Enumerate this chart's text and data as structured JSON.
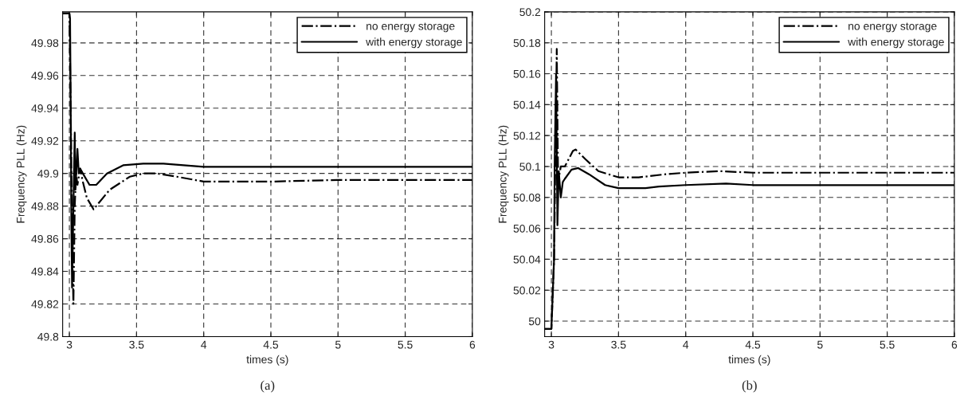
{
  "chart_data": [
    {
      "type": "line",
      "xlabel": "times (s)",
      "ylabel": "Frequency PLL (Hz)",
      "annotations": [
        "(a)"
      ],
      "xlim": [
        2.95,
        6
      ],
      "xticks": [
        3,
        3.5,
        4,
        4.5,
        5,
        5.5,
        6
      ],
      "ylim": [
        49.8,
        49.999
      ],
      "yticks": [
        49.8,
        49.82,
        49.84,
        49.86,
        49.88,
        49.9,
        49.92,
        49.94,
        49.96,
        49.98
      ],
      "grid": true,
      "legend": "top right",
      "series": [
        {
          "name": "no energy storage",
          "color": "#000000",
          "line_style": "dashdot",
          "x": [
            2.95,
            3.0,
            3.01,
            3.02,
            3.03,
            3.04,
            3.05,
            3.06,
            3.08,
            3.1,
            3.13,
            3.18,
            3.22,
            3.3,
            3.45,
            3.55,
            3.65,
            3.8,
            4.0,
            4.5,
            5.0,
            6.0
          ],
          "values": [
            49.998,
            49.998,
            49.94,
            49.86,
            49.82,
            49.88,
            49.9,
            49.893,
            49.903,
            49.895,
            49.885,
            49.878,
            49.882,
            49.89,
            49.898,
            49.9,
            49.9,
            49.898,
            49.895,
            49.895,
            49.896,
            49.896
          ]
        },
        {
          "name": "with energy storage",
          "color": "#000000",
          "line_style": "solid",
          "x": [
            2.95,
            3.0,
            3.005,
            3.01,
            3.015,
            3.02,
            3.03,
            3.04,
            3.045,
            3.06,
            3.07,
            3.08,
            3.1,
            3.15,
            3.2,
            3.28,
            3.4,
            3.55,
            3.7,
            3.85,
            4.0,
            6.0
          ],
          "values": [
            49.998,
            49.998,
            49.995,
            49.94,
            49.87,
            49.83,
            49.88,
            49.925,
            49.89,
            49.915,
            49.9,
            49.903,
            49.9,
            49.893,
            49.893,
            49.9,
            49.905,
            49.906,
            49.906,
            49.905,
            49.904,
            49.904
          ]
        }
      ]
    },
    {
      "type": "line",
      "xlabel": "times (s)",
      "ylabel": "Frequency PLL (Hz)",
      "annotations": [
        "(b)"
      ],
      "xlim": [
        2.95,
        6
      ],
      "xticks": [
        3,
        3.5,
        4,
        4.5,
        5,
        5.5,
        6
      ],
      "ylim": [
        49.99,
        50.2
      ],
      "yticks": [
        50,
        50.02,
        50.04,
        50.06,
        50.08,
        50.1,
        50.12,
        50.14,
        50.16,
        50.18,
        50.2
      ],
      "grid": true,
      "legend": "top right",
      "series": [
        {
          "name": "no energy storage",
          "color": "#000000",
          "line_style": "dashdot",
          "x": [
            2.95,
            3.0,
            3.02,
            3.04,
            3.05,
            3.07,
            3.1,
            3.16,
            3.18,
            3.25,
            3.35,
            3.5,
            3.65,
            3.85,
            4.0,
            4.25,
            4.5,
            5.0,
            6.0
          ],
          "values": [
            49.995,
            49.995,
            50.04,
            50.176,
            50.09,
            50.1,
            50.1,
            50.11,
            50.111,
            50.105,
            50.097,
            50.093,
            50.093,
            50.095,
            50.096,
            50.097,
            50.096,
            50.096,
            50.096
          ]
        },
        {
          "name": "with energy storage",
          "color": "#000000",
          "line_style": "solid",
          "x": [
            2.95,
            3.0,
            3.02,
            3.025,
            3.035,
            3.045,
            3.055,
            3.07,
            3.085,
            3.1,
            3.15,
            3.2,
            3.28,
            3.4,
            3.5,
            3.7,
            3.8,
            4.0,
            4.3,
            4.5,
            6.0
          ],
          "values": [
            49.995,
            49.995,
            50.04,
            50.105,
            50.16,
            50.062,
            50.097,
            50.08,
            50.09,
            50.092,
            50.098,
            50.099,
            50.095,
            50.088,
            50.086,
            50.086,
            50.087,
            50.088,
            50.089,
            50.088,
            50.088
          ]
        }
      ]
    }
  ]
}
